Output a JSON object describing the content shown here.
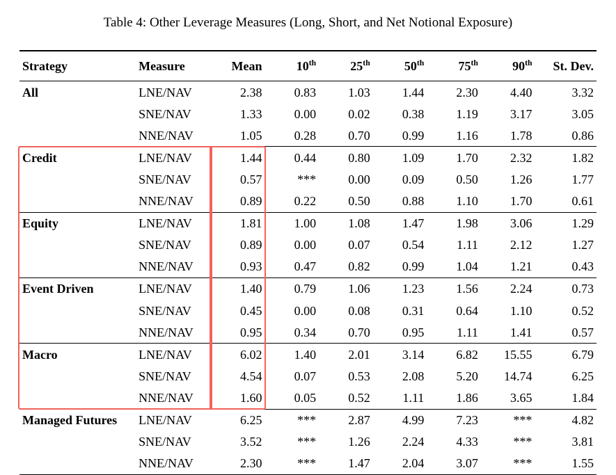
{
  "caption": "Table 4: Other Leverage Measures (Long, Short, and Net Notional Exposure)",
  "columns": [
    {
      "key": "strategy",
      "label": "Strategy",
      "align": "left"
    },
    {
      "key": "measure",
      "label": "Measure",
      "align": "left"
    },
    {
      "key": "mean",
      "label": "Mean",
      "align": "right"
    },
    {
      "key": "p10",
      "label_html": "10<sup>th</sup>",
      "align": "right"
    },
    {
      "key": "p25",
      "label_html": "25<sup>th</sup>",
      "align": "right"
    },
    {
      "key": "p50",
      "label_html": "50<sup>th</sup>",
      "align": "right"
    },
    {
      "key": "p75",
      "label_html": "75<sup>th</sup>",
      "align": "right"
    },
    {
      "key": "p90",
      "label_html": "90<sup>th</sup>",
      "align": "right"
    },
    {
      "key": "stdev",
      "label": "St. Dev.",
      "align": "right"
    }
  ],
  "groups": [
    {
      "strategy": "All",
      "rows": [
        {
          "measure": "LNE/NAV",
          "mean": "2.38",
          "p10": "0.83",
          "p25": "1.03",
          "p50": "1.44",
          "p75": "2.30",
          "p90": "4.40",
          "stdev": "3.32"
        },
        {
          "measure": "SNE/NAV",
          "mean": "1.33",
          "p10": "0.00",
          "p25": "0.02",
          "p50": "0.38",
          "p75": "1.19",
          "p90": "3.17",
          "stdev": "3.05"
        },
        {
          "measure": "NNE/NAV",
          "mean": "1.05",
          "p10": "0.28",
          "p25": "0.70",
          "p50": "0.99",
          "p75": "1.16",
          "p90": "1.78",
          "stdev": "0.86"
        }
      ]
    },
    {
      "strategy": "Credit",
      "rows": [
        {
          "measure": "LNE/NAV",
          "mean": "1.44",
          "p10": "0.44",
          "p25": "0.80",
          "p50": "1.09",
          "p75": "1.70",
          "p90": "2.32",
          "stdev": "1.82"
        },
        {
          "measure": "SNE/NAV",
          "mean": "0.57",
          "p10": "***",
          "p25": "0.00",
          "p50": "0.09",
          "p75": "0.50",
          "p90": "1.26",
          "stdev": "1.77"
        },
        {
          "measure": "NNE/NAV",
          "mean": "0.89",
          "p10": "0.22",
          "p25": "0.50",
          "p50": "0.88",
          "p75": "1.10",
          "p90": "1.70",
          "stdev": "0.61"
        }
      ]
    },
    {
      "strategy": "Equity",
      "rows": [
        {
          "measure": "LNE/NAV",
          "mean": "1.81",
          "p10": "1.00",
          "p25": "1.08",
          "p50": "1.47",
          "p75": "1.98",
          "p90": "3.06",
          "stdev": "1.29"
        },
        {
          "measure": "SNE/NAV",
          "mean": "0.89",
          "p10": "0.00",
          "p25": "0.07",
          "p50": "0.54",
          "p75": "1.11",
          "p90": "2.12",
          "stdev": "1.27"
        },
        {
          "measure": "NNE/NAV",
          "mean": "0.93",
          "p10": "0.47",
          "p25": "0.82",
          "p50": "0.99",
          "p75": "1.04",
          "p90": "1.21",
          "stdev": "0.43"
        }
      ]
    },
    {
      "strategy": "Event Driven",
      "rows": [
        {
          "measure": "LNE/NAV",
          "mean": "1.40",
          "p10": "0.79",
          "p25": "1.06",
          "p50": "1.23",
          "p75": "1.56",
          "p90": "2.24",
          "stdev": "0.73"
        },
        {
          "measure": "SNE/NAV",
          "mean": "0.45",
          "p10": "0.00",
          "p25": "0.08",
          "p50": "0.31",
          "p75": "0.64",
          "p90": "1.10",
          "stdev": "0.52"
        },
        {
          "measure": "NNE/NAV",
          "mean": "0.95",
          "p10": "0.34",
          "p25": "0.70",
          "p50": "0.95",
          "p75": "1.11",
          "p90": "1.41",
          "stdev": "0.57"
        }
      ]
    },
    {
      "strategy": "Macro",
      "rows": [
        {
          "measure": "LNE/NAV",
          "mean": "6.02",
          "p10": "1.40",
          "p25": "2.01",
          "p50": "3.14",
          "p75": "6.82",
          "p90": "15.55",
          "stdev": "6.79"
        },
        {
          "measure": "SNE/NAV",
          "mean": "4.54",
          "p10": "0.07",
          "p25": "0.53",
          "p50": "2.08",
          "p75": "5.20",
          "p90": "14.74",
          "stdev": "6.25"
        },
        {
          "measure": "NNE/NAV",
          "mean": "1.60",
          "p10": "0.05",
          "p25": "0.52",
          "p50": "1.11",
          "p75": "1.86",
          "p90": "3.65",
          "stdev": "1.84"
        }
      ]
    },
    {
      "strategy": "Managed Futures",
      "rows": [
        {
          "measure": "LNE/NAV",
          "mean": "6.25",
          "p10": "***",
          "p25": "2.87",
          "p50": "4.99",
          "p75": "7.23",
          "p90": "***",
          "stdev": "4.82"
        },
        {
          "measure": "SNE/NAV",
          "mean": "3.52",
          "p10": "***",
          "p25": "1.26",
          "p50": "2.24",
          "p75": "4.33",
          "p90": "***",
          "stdev": "3.81"
        },
        {
          "measure": "NNE/NAV",
          "mean": "2.30",
          "p10": "***",
          "p25": "1.47",
          "p50": "2.04",
          "p75": "3.07",
          "p90": "***",
          "stdev": "1.55"
        }
      ]
    }
  ],
  "highlights": [
    {
      "from_group": 1,
      "to_group": 4,
      "cols_from": "strategy",
      "cols_to": "measure",
      "color": "#f2615a"
    },
    {
      "from_group": 1,
      "to_group": 4,
      "cols_from": "mean",
      "cols_to": "mean",
      "color": "#f2615a"
    }
  ]
}
